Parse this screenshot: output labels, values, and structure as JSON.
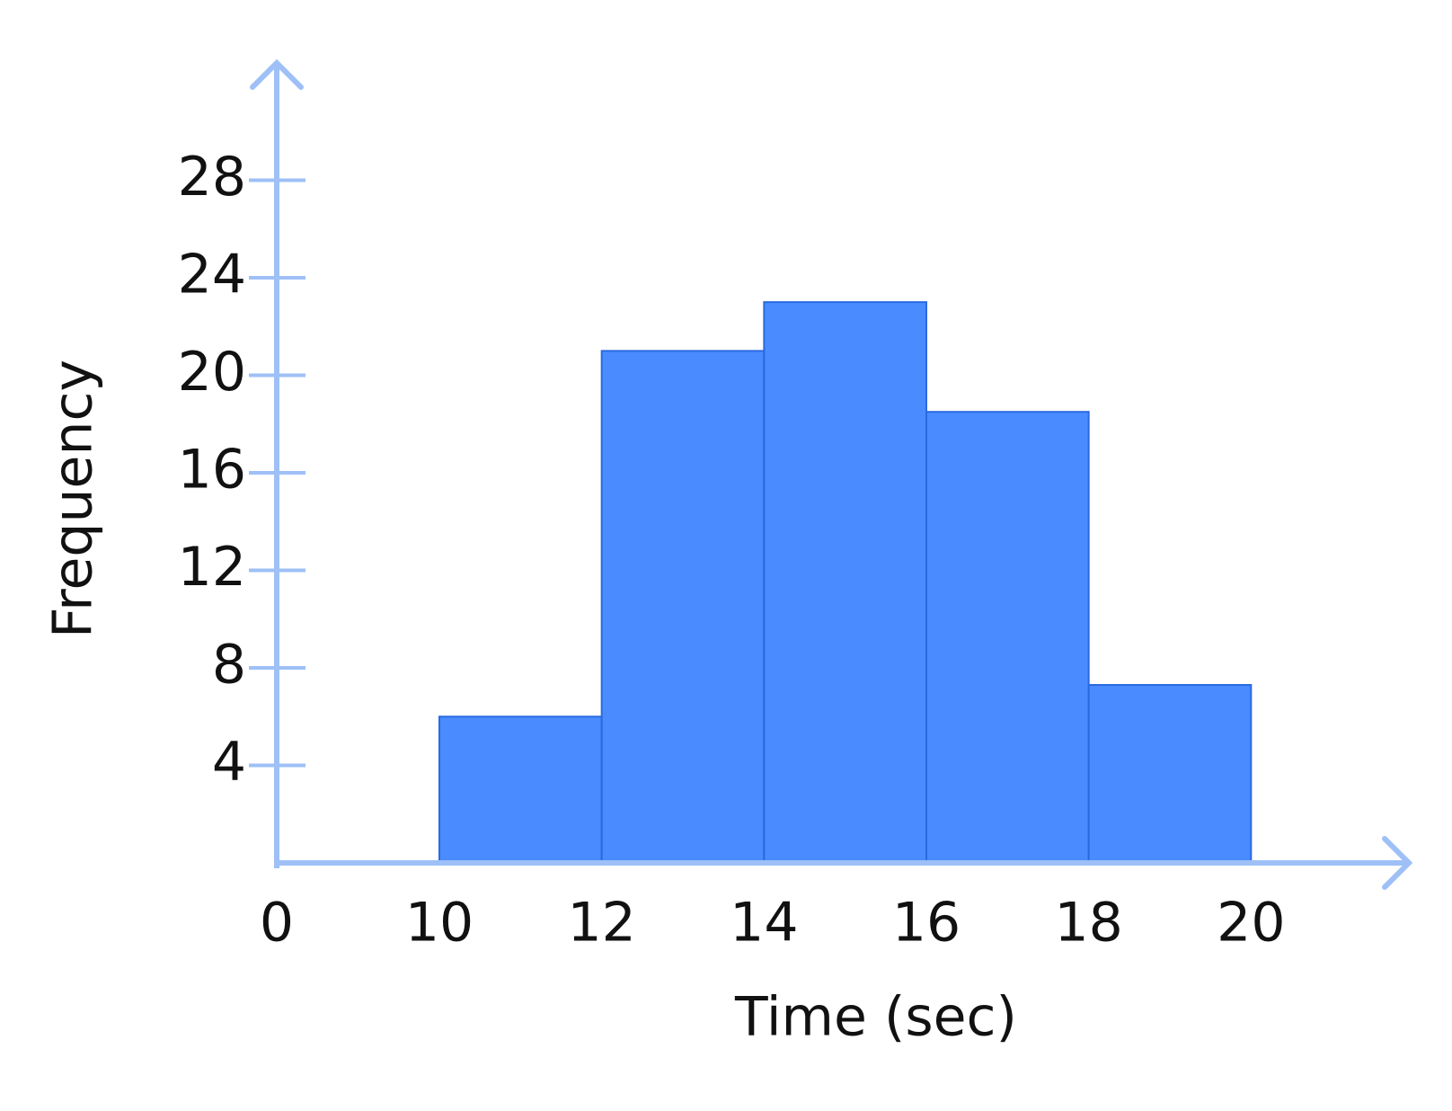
{
  "chart_data": {
    "type": "histogram",
    "xlabel": "Time (sec)",
    "ylabel": "Frequency",
    "bins": [
      10,
      12,
      14,
      16,
      18,
      20
    ],
    "values": [
      6,
      21,
      23,
      18.5,
      7.3
    ],
    "color": "#4a8cff",
    "xlim": [
      0,
      22
    ],
    "xticks": [
      0,
      10,
      12,
      14,
      16,
      18,
      20
    ],
    "ylim": [
      0,
      32
    ],
    "yticks": [
      4,
      8,
      12,
      16,
      20,
      24,
      28
    ]
  }
}
